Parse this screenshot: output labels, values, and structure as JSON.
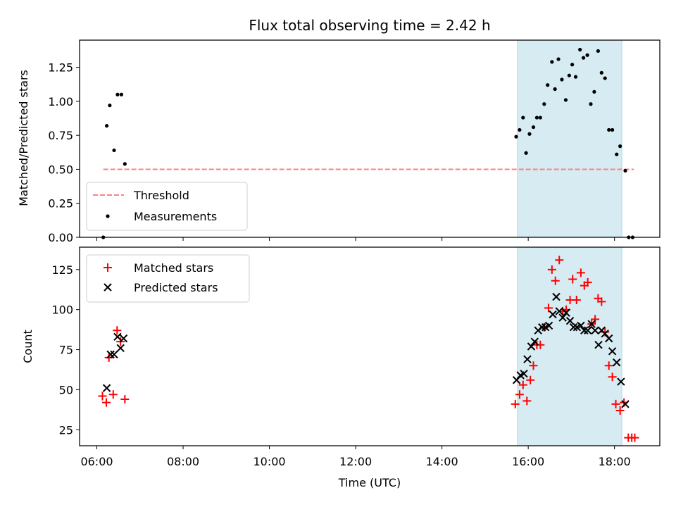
{
  "chart_data": {
    "type": "scatter",
    "title": "Flux total observing time = 2.42 h",
    "xlabel": "Time (UTC)",
    "xlim": [
      5.6,
      19.05
    ],
    "x_ticks": [
      {
        "value": 6,
        "label": "06:00"
      },
      {
        "value": 8,
        "label": "08:00"
      },
      {
        "value": 10,
        "label": "10:00"
      },
      {
        "value": 12,
        "label": "12:00"
      },
      {
        "value": 14,
        "label": "14:00"
      },
      {
        "value": 16,
        "label": "16:00"
      },
      {
        "value": 18,
        "label": "18:00"
      }
    ],
    "shaded_interval": [
      15.75,
      18.17
    ],
    "colors": {
      "shade": "#add8e6",
      "threshold": "#ff8080",
      "measurements": "#000000",
      "matched": "#ff0000",
      "predicted": "#000000"
    },
    "top": {
      "ylabel": "Matched/Predicted stars",
      "ylim": [
        0,
        1.45
      ],
      "y_ticks": [
        "0.00",
        "0.25",
        "0.50",
        "0.75",
        "1.00",
        "1.25"
      ],
      "threshold": {
        "value": 0.5,
        "x_range": [
          6.15,
          18.45
        ]
      },
      "legend": {
        "position": "lower-left",
        "entries": [
          "Threshold",
          "Measurements"
        ]
      },
      "measurements": [
        [
          6.15,
          0.0
        ],
        [
          6.23,
          0.82
        ],
        [
          6.3,
          0.97
        ],
        [
          6.4,
          0.64
        ],
        [
          6.48,
          1.05
        ],
        [
          6.57,
          1.05
        ],
        [
          6.65,
          0.54
        ],
        [
          15.72,
          0.74
        ],
        [
          15.8,
          0.79
        ],
        [
          15.88,
          0.88
        ],
        [
          15.95,
          0.62
        ],
        [
          16.03,
          0.76
        ],
        [
          16.12,
          0.81
        ],
        [
          16.2,
          0.88
        ],
        [
          16.28,
          0.88
        ],
        [
          16.37,
          0.98
        ],
        [
          16.45,
          1.12
        ],
        [
          16.55,
          1.29
        ],
        [
          16.62,
          1.09
        ],
        [
          16.7,
          1.31
        ],
        [
          16.78,
          1.16
        ],
        [
          16.87,
          1.01
        ],
        [
          16.95,
          1.19
        ],
        [
          17.02,
          1.27
        ],
        [
          17.1,
          1.18
        ],
        [
          17.2,
          1.38
        ],
        [
          17.28,
          1.32
        ],
        [
          17.37,
          1.34
        ],
        [
          17.45,
          0.98
        ],
        [
          17.53,
          1.07
        ],
        [
          17.62,
          1.37
        ],
        [
          17.7,
          1.21
        ],
        [
          17.78,
          1.17
        ],
        [
          17.87,
          0.79
        ],
        [
          17.95,
          0.79
        ],
        [
          18.05,
          0.61
        ],
        [
          18.13,
          0.67
        ],
        [
          18.25,
          0.49
        ],
        [
          18.33,
          0.0
        ],
        [
          18.42,
          0.0
        ]
      ]
    },
    "bottom": {
      "ylabel": "Count",
      "ylim": [
        15,
        139
      ],
      "y_ticks": [
        "25",
        "50",
        "75",
        "100",
        "125"
      ],
      "legend": {
        "position": "upper-left",
        "entries": [
          "Matched stars",
          "Predicted stars"
        ]
      },
      "matched": [
        [
          6.13,
          46
        ],
        [
          6.22,
          42
        ],
        [
          6.28,
          70
        ],
        [
          6.38,
          47
        ],
        [
          6.47,
          87
        ],
        [
          6.55,
          80
        ],
        [
          6.65,
          44
        ],
        [
          15.7,
          41
        ],
        [
          15.8,
          47
        ],
        [
          15.88,
          53
        ],
        [
          15.97,
          43
        ],
        [
          16.05,
          56
        ],
        [
          16.12,
          65
        ],
        [
          16.2,
          78
        ],
        [
          16.28,
          78
        ],
        [
          16.37,
          89
        ],
        [
          16.47,
          101
        ],
        [
          16.55,
          125
        ],
        [
          16.63,
          118
        ],
        [
          16.72,
          131
        ],
        [
          16.8,
          99
        ],
        [
          16.88,
          100
        ],
        [
          16.97,
          106
        ],
        [
          17.03,
          119
        ],
        [
          17.12,
          106
        ],
        [
          17.22,
          123
        ],
        [
          17.3,
          115
        ],
        [
          17.38,
          117
        ],
        [
          17.47,
          91
        ],
        [
          17.55,
          94
        ],
        [
          17.62,
          107
        ],
        [
          17.7,
          105
        ],
        [
          17.78,
          86
        ],
        [
          17.87,
          65
        ],
        [
          17.95,
          58
        ],
        [
          18.03,
          41
        ],
        [
          18.13,
          37
        ],
        [
          18.22,
          42
        ],
        [
          18.32,
          20
        ],
        [
          18.4,
          20
        ],
        [
          18.47,
          20
        ]
      ],
      "predicted": [
        [
          6.23,
          51
        ],
        [
          6.32,
          72
        ],
        [
          6.4,
          72
        ],
        [
          6.48,
          83
        ],
        [
          6.55,
          76
        ],
        [
          6.62,
          82
        ],
        [
          15.73,
          56
        ],
        [
          15.82,
          59
        ],
        [
          15.9,
          60
        ],
        [
          15.98,
          69
        ],
        [
          16.07,
          77
        ],
        [
          16.15,
          80
        ],
        [
          16.23,
          87
        ],
        [
          16.32,
          89
        ],
        [
          16.4,
          89
        ],
        [
          16.48,
          90
        ],
        [
          16.57,
          97
        ],
        [
          16.65,
          108
        ],
        [
          16.72,
          99
        ],
        [
          16.8,
          95
        ],
        [
          16.88,
          98
        ],
        [
          16.97,
          93
        ],
        [
          17.05,
          89
        ],
        [
          17.13,
          89
        ],
        [
          17.22,
          90
        ],
        [
          17.3,
          87
        ],
        [
          17.38,
          87
        ],
        [
          17.47,
          91
        ],
        [
          17.55,
          87
        ],
        [
          17.63,
          78
        ],
        [
          17.7,
          87
        ],
        [
          17.78,
          85
        ],
        [
          17.87,
          82
        ],
        [
          17.95,
          74
        ],
        [
          18.05,
          67
        ],
        [
          18.15,
          55
        ],
        [
          18.25,
          41
        ]
      ]
    }
  }
}
